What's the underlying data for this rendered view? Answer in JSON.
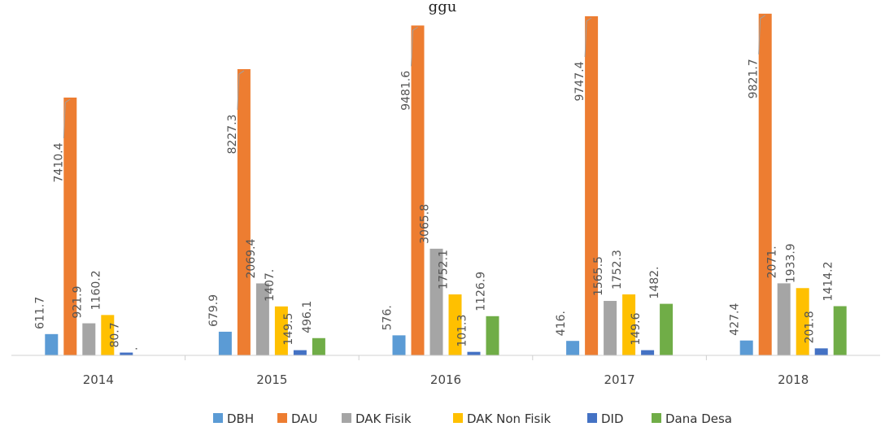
{
  "chart_data": {
    "type": "bar",
    "title_fragment": "ggu",
    "categories": [
      "2014",
      "2015",
      "2016",
      "2017",
      "2018"
    ],
    "series": [
      {
        "name": "DBH",
        "color": "#5B9BD5",
        "values": [
          611.7,
          679.9,
          576,
          416,
          427.4
        ],
        "labels": [
          "611.7",
          "679.9",
          "576.",
          "416.",
          "427.4"
        ]
      },
      {
        "name": "DAU",
        "color": "#ED7D31",
        "values": [
          7410.4,
          8227.3,
          9481.6,
          9747.4,
          9821.7
        ],
        "labels": [
          "7410.4",
          "8227.3",
          "9481.6",
          "9747.4",
          "9821.7"
        ]
      },
      {
        "name": "DAK Fisik",
        "color": "#A5A5A5",
        "values": [
          921.9,
          2069.4,
          3065.8,
          1565.5,
          2071
        ],
        "labels": [
          "921.9",
          "2069.4",
          "3065.8",
          "1565.5",
          "2071."
        ]
      },
      {
        "name": "DAK Non Fisik",
        "color": "#FFC000",
        "values": [
          1160.2,
          1407,
          1752.1,
          1752.3,
          1933.9
        ],
        "labels": [
          "1160.2",
          "1407.",
          "1752.1",
          "1752.3",
          "1933.9"
        ]
      },
      {
        "name": "DID",
        "color": "#4472C4",
        "values": [
          80.7,
          149.5,
          101.3,
          149.6,
          201.8
        ],
        "labels": [
          "80.7",
          "149.5",
          "101.3",
          "149.6",
          "201.8"
        ]
      },
      {
        "name": "Dana Desa",
        "color": "#70AD47",
        "values": [
          0,
          496.1,
          1126.9,
          1482,
          1414.2
        ],
        "labels": [
          ".",
          "496.1",
          "1126.9",
          "1482.",
          "1414.2"
        ]
      }
    ],
    "ylim": [
      0,
      10000
    ],
    "legend": "bottom",
    "grid": false
  }
}
